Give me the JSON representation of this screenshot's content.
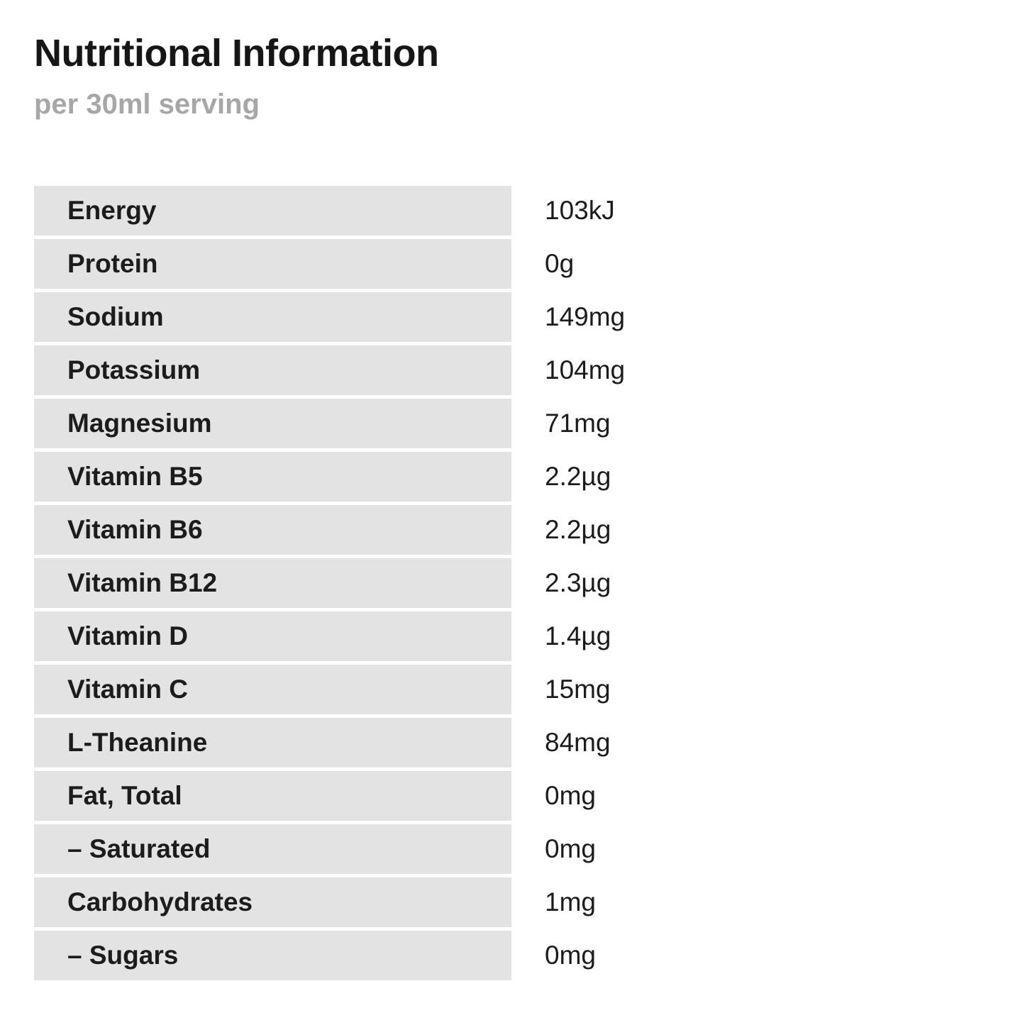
{
  "header": {
    "title": "Nutritional Information",
    "subtitle": "per 30ml serving"
  },
  "table": {
    "rows": [
      {
        "label": "Energy",
        "value": "103kJ"
      },
      {
        "label": "Protein",
        "value": "0g"
      },
      {
        "label": "Sodium",
        "value": "149mg"
      },
      {
        "label": "Potassium",
        "value": "104mg"
      },
      {
        "label": "Magnesium",
        "value": "71mg"
      },
      {
        "label": "Vitamin B5",
        "value": "2.2µg"
      },
      {
        "label": "Vitamin B6",
        "value": "2.2µg"
      },
      {
        "label": "Vitamin B12",
        "value": "2.3µg"
      },
      {
        "label": "Vitamin D",
        "value": "1.4µg"
      },
      {
        "label": "Vitamin C",
        "value": "15mg"
      },
      {
        "label": "L-Theanine",
        "value": "84mg"
      },
      {
        "label": "Fat, Total",
        "value": "0mg"
      },
      {
        "label": "– Saturated",
        "value": "0mg"
      },
      {
        "label": "Carbohydrates",
        "value": "1mg"
      },
      {
        "label": "– Sugars",
        "value": "0mg"
      }
    ]
  },
  "colors": {
    "background": "#ffffff",
    "row_bar_bg": "#e3e3e3",
    "title_color": "#161616",
    "subtitle_color": "#a7a7a7",
    "text_color": "#1c1c1c"
  }
}
